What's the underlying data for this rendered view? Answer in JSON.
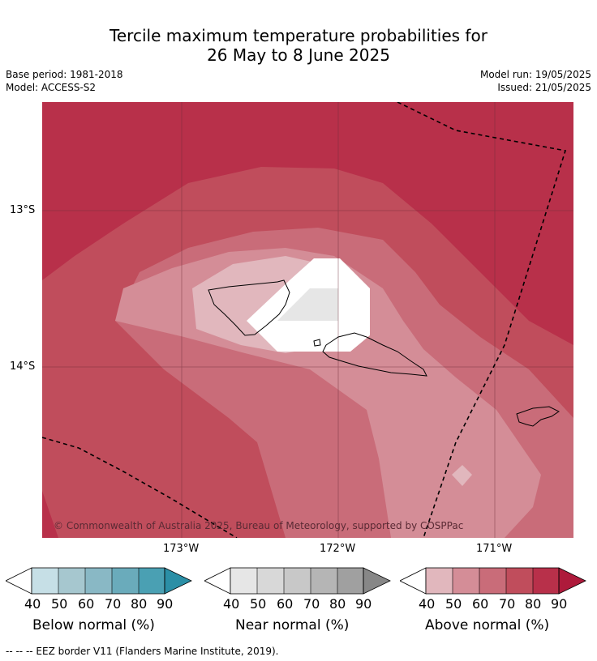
{
  "title": {
    "line1": "Tercile maximum temperature probabilities for",
    "line2": "26 May to 8 June 2025"
  },
  "meta": {
    "base_period": "Base period: 1981-2018",
    "model": "Model: ACCESS-S2",
    "model_run": "Model run: 19/05/2025",
    "issued": "Issued: 21/05/2025"
  },
  "map": {
    "lat_labels": [
      "13°S",
      "14°S"
    ],
    "lon_labels": [
      "173°W",
      "172°W",
      "171°W"
    ],
    "copyright": "© Commonwealth of Australia 2025, Bureau of Meteorology, supported by COSPPac"
  },
  "legends": [
    {
      "caption": "Below normal (%)",
      "ticks": [
        "40",
        "50",
        "60",
        "70",
        "80",
        "90"
      ],
      "colors": [
        "#ffffff",
        "#c6dfe6",
        "#a6c7cf",
        "#89b8c5",
        "#6aabbb",
        "#4aa0b3",
        "#2b8fa6"
      ]
    },
    {
      "caption": "Near normal (%)",
      "ticks": [
        "40",
        "50",
        "60",
        "70",
        "80",
        "90"
      ],
      "colors": [
        "#ffffff",
        "#e6e6e6",
        "#d8d8d8",
        "#c8c8c8",
        "#b5b5b5",
        "#a0a0a0",
        "#878787"
      ]
    },
    {
      "caption": "Above normal (%)",
      "ticks": [
        "40",
        "50",
        "60",
        "70",
        "80",
        "90"
      ],
      "colors": [
        "#ffffff",
        "#e1b7bd",
        "#d48d97",
        "#c96c79",
        "#c04d5c",
        "#b8304a",
        "#ae1a3b"
      ]
    }
  ],
  "footnote": "--  --  -- EEZ border V11 (Flanders Marine Institute, 2019)."
}
